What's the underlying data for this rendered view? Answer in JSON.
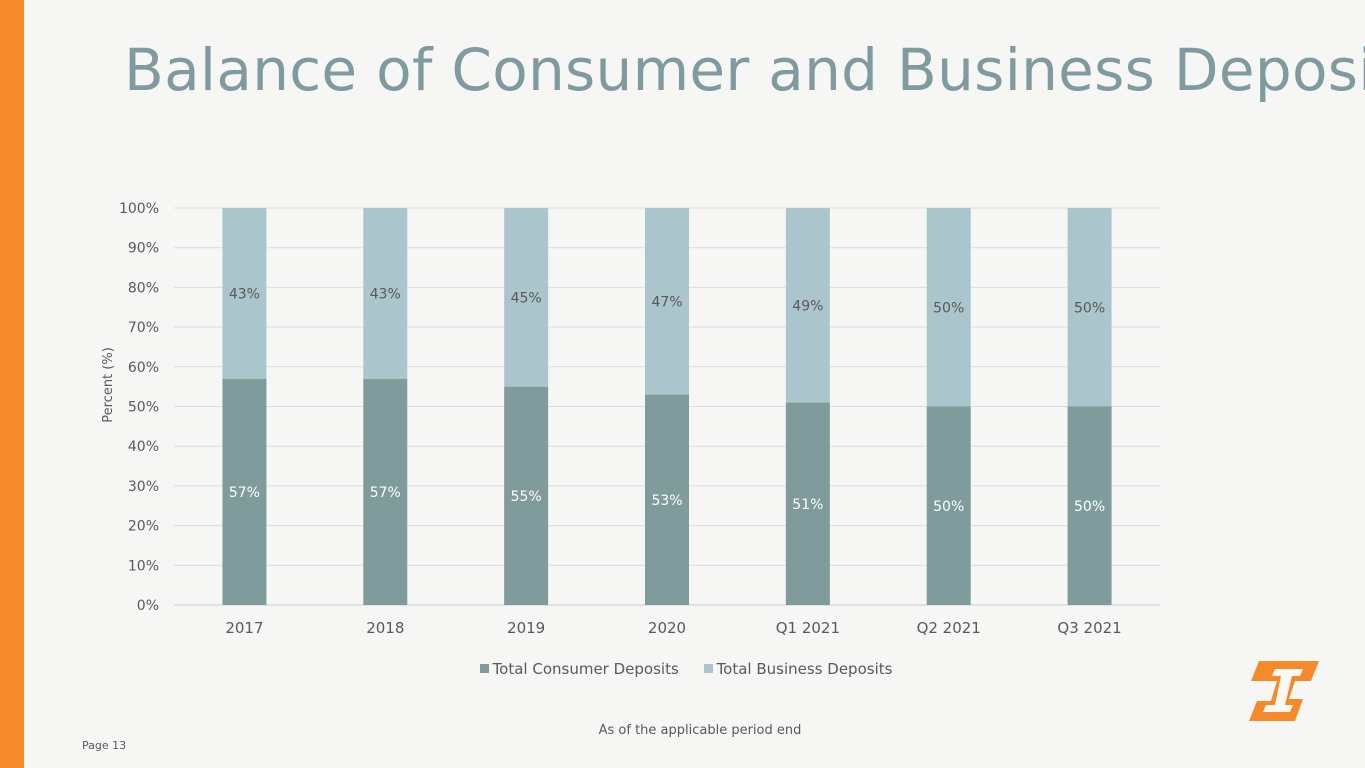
{
  "slide": {
    "title": "Balance of Consumer and Business Deposits",
    "footnote": "As of the applicable period end",
    "page_label": "Page 13"
  },
  "colors": {
    "accent": "#f58a2a",
    "title": "#7f9b9f",
    "consumer": "#7f9b9c",
    "business": "#abc5cc"
  },
  "legend": {
    "consumer": "Total Consumer Deposits",
    "business": "Total Business Deposits"
  },
  "chart_data": {
    "type": "bar",
    "stacked": true,
    "title": "",
    "xlabel": "",
    "ylabel": "Percent (%)",
    "ylim": [
      0,
      100
    ],
    "yticks": [
      "0%",
      "10%",
      "20%",
      "30%",
      "40%",
      "50%",
      "60%",
      "70%",
      "80%",
      "90%",
      "100%"
    ],
    "categories": [
      "2017",
      "2018",
      "2019",
      "2020",
      "Q1 2021",
      "Q2 2021",
      "Q3 2021"
    ],
    "series": [
      {
        "name": "Total Consumer Deposits",
        "values": [
          57,
          57,
          55,
          53,
          51,
          50,
          50
        ],
        "labels": [
          "57%",
          "57%",
          "55%",
          "53%",
          "51%",
          "50%",
          "50%"
        ]
      },
      {
        "name": "Total Business Deposits",
        "values": [
          43,
          43,
          45,
          47,
          49,
          50,
          50
        ],
        "labels": [
          "43%",
          "43%",
          "45%",
          "47%",
          "49%",
          "50%",
          "50%"
        ]
      }
    ],
    "legend_position": "bottom",
    "grid": true
  }
}
